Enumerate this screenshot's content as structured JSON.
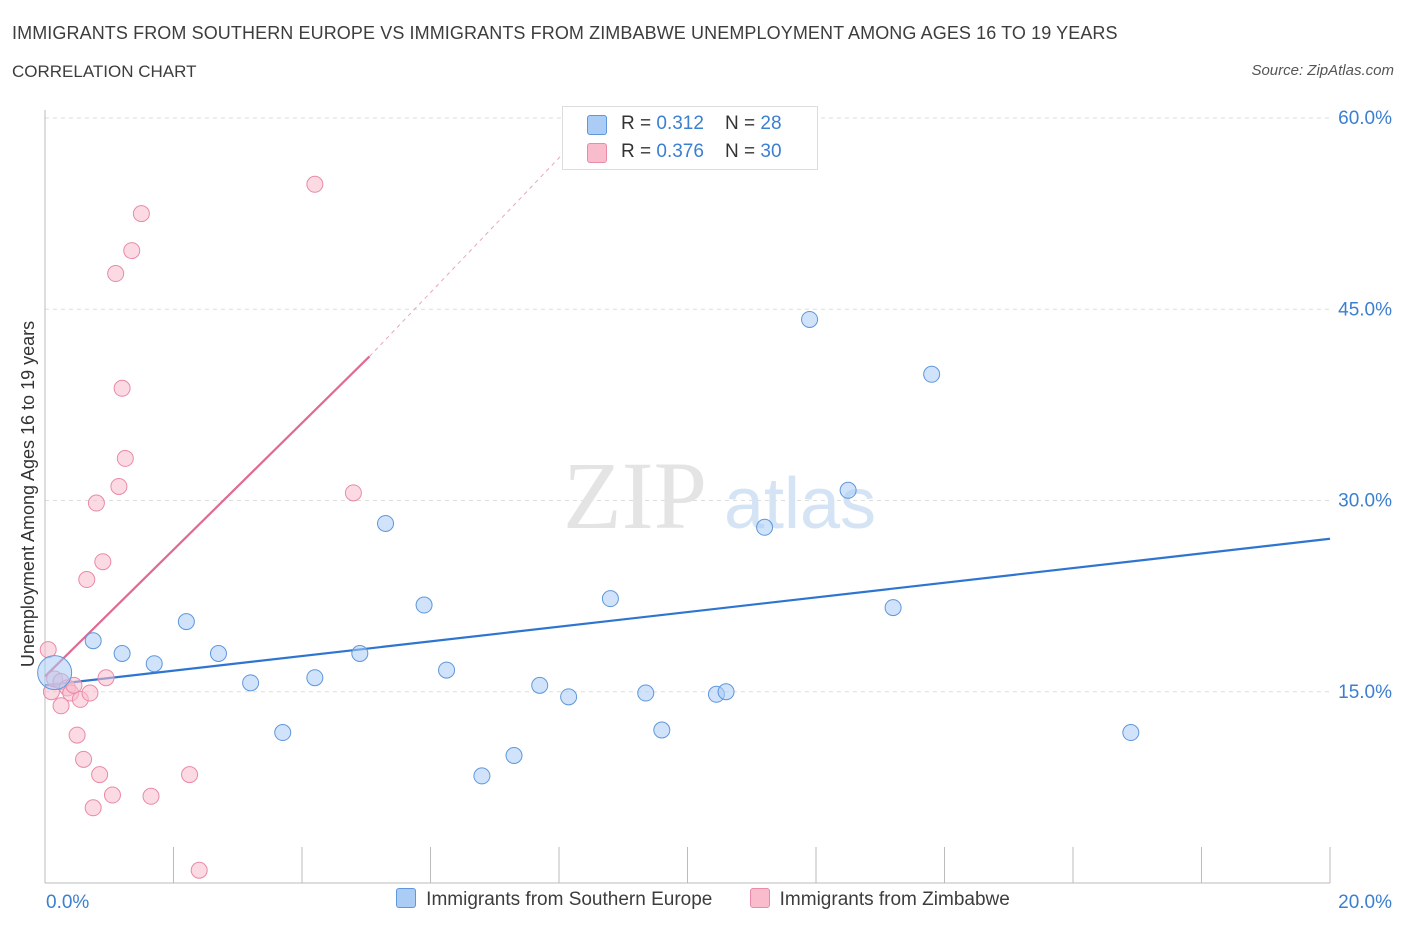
{
  "title": "IMMIGRANTS FROM SOUTHERN EUROPE VS IMMIGRANTS FROM ZIMBABWE UNEMPLOYMENT AMONG AGES 16 TO 19 YEARS",
  "subtitle": "CORRELATION CHART",
  "source": "Source: ZipAtlas.com",
  "watermark": {
    "zip": "ZIP",
    "atlas": "atlas"
  },
  "stats": {
    "rows": [
      {
        "r_label": "R = ",
        "r_value": "0.312",
        "n_label": "N = ",
        "n_value": "28"
      },
      {
        "r_label": "R = ",
        "r_value": "0.376",
        "n_label": "N = ",
        "n_value": "30"
      }
    ]
  },
  "legend": {
    "items": [
      {
        "label": "Immigrants from Southern Europe"
      },
      {
        "label": "Immigrants from Zimbabwe"
      }
    ]
  },
  "colors": {
    "blue_fill": "#aaccf5",
    "blue_stroke": "#5e97db",
    "blue_line": "#2e75d0",
    "pink_fill": "#f8bccd",
    "pink_stroke": "#e98aa6",
    "pink_line": "#e06a90",
    "tick_text": "#3b7fd1",
    "grid": "#dddddd"
  },
  "chart_data": {
    "type": "scatter",
    "title": "IMMIGRANTS FROM SOUTHERN EUROPE VS IMMIGRANTS FROM ZIMBABWE UNEMPLOYMENT AMONG AGES 16 TO 19 YEARS",
    "xlabel": "",
    "ylabel": "Unemployment Among Ages 16 to 19 years",
    "xlim": [
      0,
      20
    ],
    "ylim": [
      0,
      60
    ],
    "x_tick_labels": [
      "0.0%",
      "20.0%"
    ],
    "y_ticks": [
      15,
      30,
      45,
      60
    ],
    "y_tick_labels": [
      "15.0%",
      "30.0%",
      "45.0%",
      "60.0%"
    ],
    "grid": true,
    "legend_position": "bottom",
    "series": [
      {
        "name": "Immigrants from Southern Europe",
        "R": 0.312,
        "N": 28,
        "trend": {
          "x0": 0.0,
          "y0": 15.5,
          "x1": 20.0,
          "y1": 27.0
        },
        "points": [
          {
            "x": 0.15,
            "y": 16.5,
            "large": true
          },
          {
            "x": 0.75,
            "y": 19.0
          },
          {
            "x": 1.2,
            "y": 18.0
          },
          {
            "x": 1.7,
            "y": 17.2
          },
          {
            "x": 2.2,
            "y": 20.5
          },
          {
            "x": 2.7,
            "y": 18.0
          },
          {
            "x": 3.2,
            "y": 15.7
          },
          {
            "x": 3.7,
            "y": 11.8
          },
          {
            "x": 4.2,
            "y": 16.1
          },
          {
            "x": 4.9,
            "y": 18.0
          },
          {
            "x": 5.3,
            "y": 28.2
          },
          {
            "x": 5.9,
            "y": 21.8
          },
          {
            "x": 6.25,
            "y": 16.7
          },
          {
            "x": 6.8,
            "y": 8.4
          },
          {
            "x": 7.3,
            "y": 10.0
          },
          {
            "x": 7.7,
            "y": 15.5
          },
          {
            "x": 8.15,
            "y": 14.6
          },
          {
            "x": 8.8,
            "y": 22.3
          },
          {
            "x": 9.35,
            "y": 14.9
          },
          {
            "x": 9.6,
            "y": 12.0
          },
          {
            "x": 10.45,
            "y": 14.8
          },
          {
            "x": 10.6,
            "y": 15.0
          },
          {
            "x": 11.2,
            "y": 27.9
          },
          {
            "x": 11.9,
            "y": 44.2
          },
          {
            "x": 12.5,
            "y": 30.8
          },
          {
            "x": 13.2,
            "y": 21.6
          },
          {
            "x": 13.8,
            "y": 39.9
          },
          {
            "x": 16.9,
            "y": 11.8
          }
        ]
      },
      {
        "name": "Immigrants from Zimbabwe",
        "R": 0.376,
        "N": 30,
        "trend": {
          "x0": 0.0,
          "y0": 16.2,
          "x1": 5.05,
          "y1": 41.3
        },
        "trend_dashed_to": {
          "x": 8.1,
          "y": 57.4
        },
        "points": [
          {
            "x": 0.05,
            "y": 18.3
          },
          {
            "x": 0.1,
            "y": 15.0
          },
          {
            "x": 0.15,
            "y": 16.0
          },
          {
            "x": 0.25,
            "y": 15.8
          },
          {
            "x": 0.25,
            "y": 13.9
          },
          {
            "x": 0.35,
            "y": 15.3
          },
          {
            "x": 0.4,
            "y": 14.9
          },
          {
            "x": 0.45,
            "y": 15.5
          },
          {
            "x": 0.5,
            "y": 11.6
          },
          {
            "x": 0.55,
            "y": 14.4
          },
          {
            "x": 0.6,
            "y": 9.7
          },
          {
            "x": 0.65,
            "y": 23.8
          },
          {
            "x": 0.7,
            "y": 14.9
          },
          {
            "x": 0.75,
            "y": 5.9
          },
          {
            "x": 0.8,
            "y": 29.8
          },
          {
            "x": 0.85,
            "y": 8.5
          },
          {
            "x": 0.9,
            "y": 25.2
          },
          {
            "x": 0.95,
            "y": 16.1
          },
          {
            "x": 1.05,
            "y": 6.9
          },
          {
            "x": 1.1,
            "y": 47.8
          },
          {
            "x": 1.15,
            "y": 31.1
          },
          {
            "x": 1.2,
            "y": 38.8
          },
          {
            "x": 1.25,
            "y": 33.3
          },
          {
            "x": 1.35,
            "y": 49.6
          },
          {
            "x": 1.5,
            "y": 52.5
          },
          {
            "x": 1.65,
            "y": 6.8
          },
          {
            "x": 2.25,
            "y": 8.5
          },
          {
            "x": 2.4,
            "y": 1.0
          },
          {
            "x": 4.2,
            "y": 54.8
          },
          {
            "x": 4.8,
            "y": 30.6
          }
        ]
      }
    ]
  }
}
